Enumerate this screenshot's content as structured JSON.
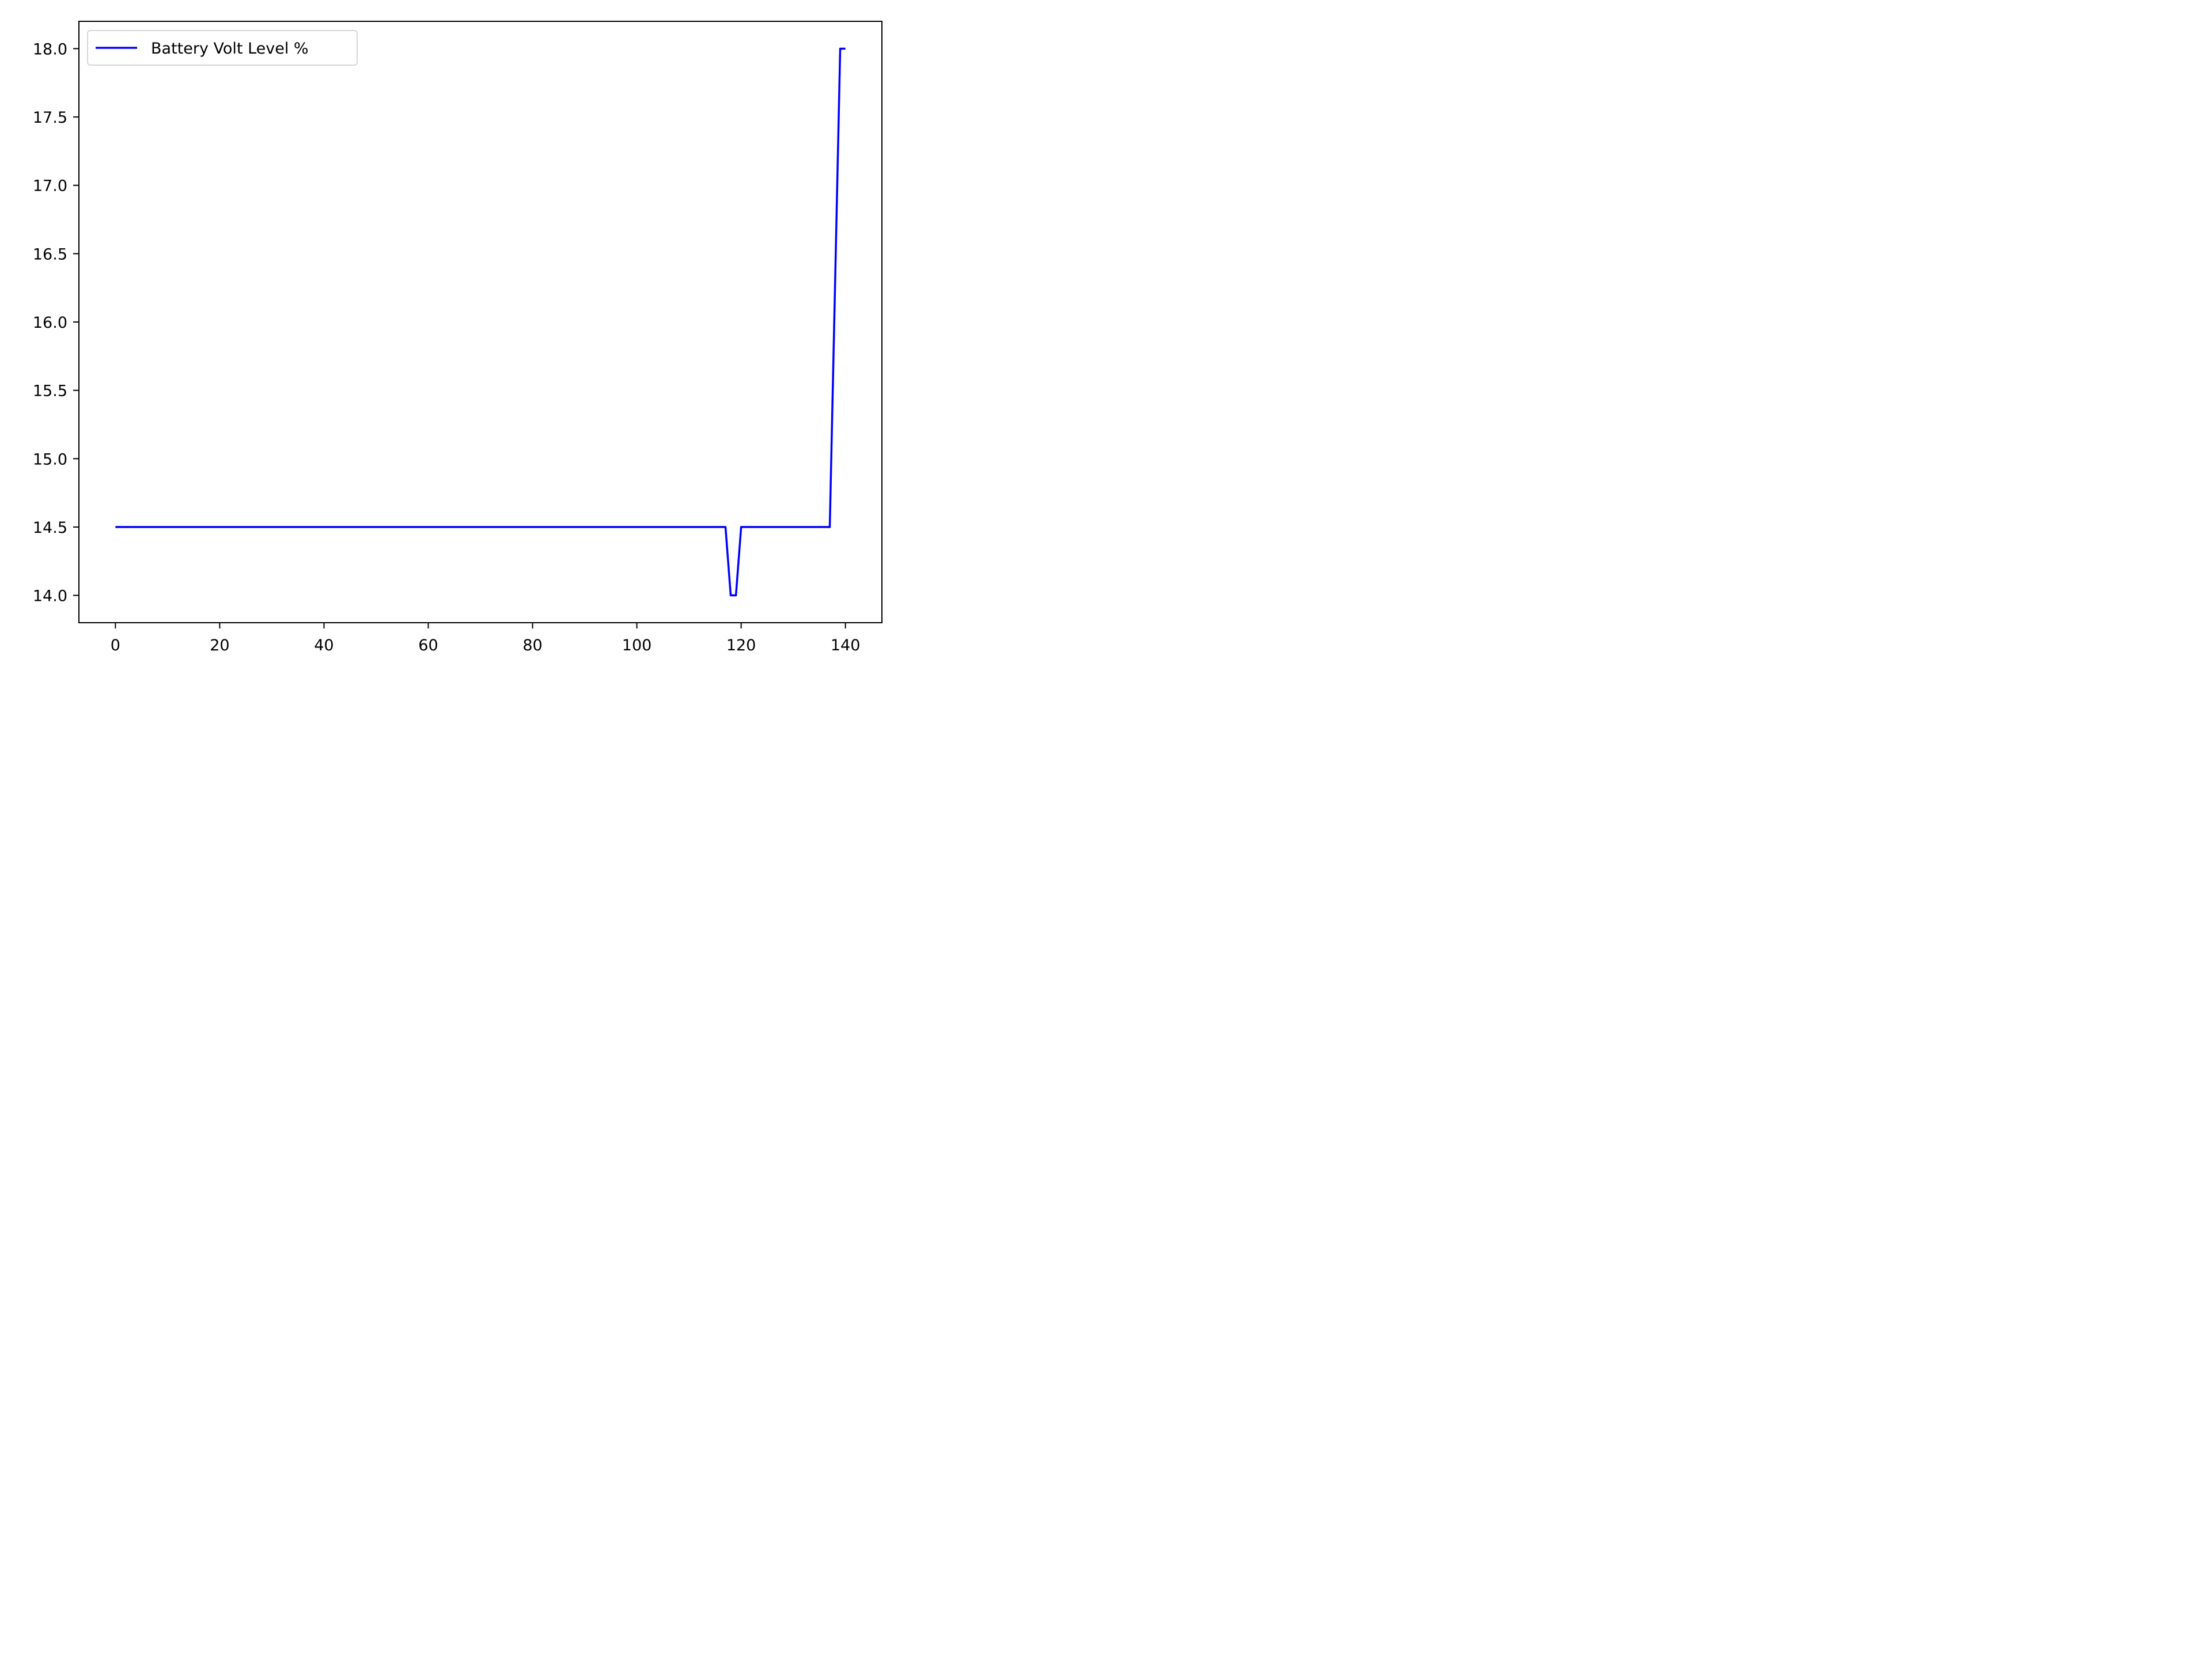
{
  "chart_data": {
    "type": "line",
    "title": "",
    "xlabel": "",
    "ylabel": "",
    "xlim": [
      -7,
      147
    ],
    "ylim": [
      13.8,
      18.2
    ],
    "x_ticks": [
      0,
      20,
      40,
      60,
      80,
      100,
      120,
      140
    ],
    "x_tick_labels": [
      "0",
      "20",
      "40",
      "60",
      "80",
      "100",
      "120",
      "140"
    ],
    "y_ticks": [
      14.0,
      14.5,
      15.0,
      15.5,
      16.0,
      16.5,
      17.0,
      17.5,
      18.0
    ],
    "y_tick_labels": [
      "14.0",
      "14.5",
      "15.0",
      "15.5",
      "16.0",
      "16.5",
      "17.0",
      "17.5",
      "18.0"
    ],
    "grid": false,
    "legend_position": "top-left",
    "series": [
      {
        "name": "Battery Volt Level %",
        "color": "#0000ff",
        "points": [
          [
            0,
            14.5
          ],
          [
            117,
            14.5
          ],
          [
            118,
            14.0
          ],
          [
            119,
            14.0
          ],
          [
            120,
            14.5
          ],
          [
            137,
            14.5
          ],
          [
            139,
            18.0
          ],
          [
            140,
            18.0
          ]
        ]
      }
    ]
  }
}
